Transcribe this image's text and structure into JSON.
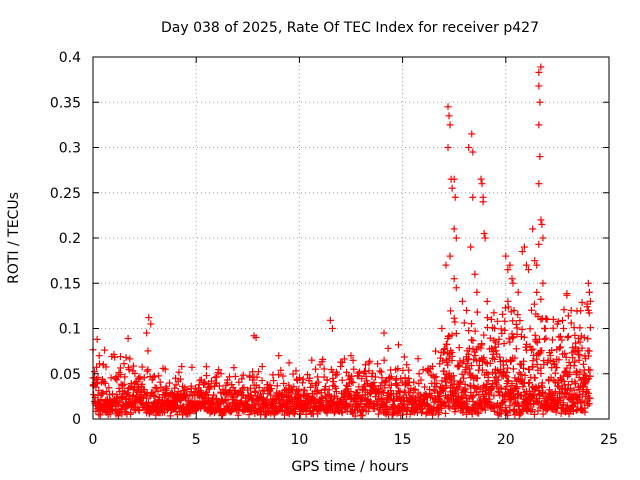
{
  "chart_data": {
    "type": "scatter",
    "title": "Day 038 of 2025, Rate Of TEC Index for receiver p427",
    "xlabel": "GPS time / hours",
    "ylabel": "ROTI / TECUs",
    "xlim": [
      0,
      25
    ],
    "ylim": [
      0,
      0.4
    ],
    "xticks": [
      0,
      5,
      10,
      15,
      20,
      25
    ],
    "yticks": [
      0,
      0.05,
      0.1,
      0.15,
      0.2,
      0.25,
      0.3,
      0.35,
      0.4
    ],
    "xtick_labels": [
      "0",
      "5",
      "10",
      "15",
      "20",
      "25"
    ],
    "ytick_labels": [
      "0",
      "0.05",
      "0.1",
      "0.15",
      "0.2",
      "0.25",
      "0.3",
      "0.35",
      "0.4"
    ],
    "grid": true,
    "marker": "+",
    "color": "#ff0000",
    "series": [
      {
        "name": "ROTI",
        "points": [
          [
            0.2,
            0.088
          ],
          [
            0.3,
            0.07
          ],
          [
            0.5,
            0.06
          ],
          [
            1.6,
            0.068
          ],
          [
            1.7,
            0.089
          ],
          [
            2.6,
            0.095
          ],
          [
            2.7,
            0.112
          ],
          [
            2.8,
            0.105
          ],
          [
            3.5,
            0.055
          ],
          [
            4.0,
            0.045
          ],
          [
            4.3,
            0.058
          ],
          [
            5.5,
            0.048
          ],
          [
            6.2,
            0.05
          ],
          [
            7.8,
            0.092
          ],
          [
            7.9,
            0.09
          ],
          [
            8.2,
            0.058
          ],
          [
            9.0,
            0.07
          ],
          [
            9.5,
            0.062
          ],
          [
            10.6,
            0.065
          ],
          [
            11.0,
            0.06
          ],
          [
            11.5,
            0.109
          ],
          [
            11.6,
            0.1
          ],
          [
            12.0,
            0.058
          ],
          [
            12.5,
            0.07
          ],
          [
            13.2,
            0.06
          ],
          [
            14.1,
            0.095
          ],
          [
            14.3,
            0.078
          ],
          [
            14.8,
            0.082
          ],
          [
            15.2,
            0.06
          ],
          [
            15.8,
            0.05
          ],
          [
            16.6,
            0.075
          ],
          [
            16.9,
            0.1
          ],
          [
            17.2,
            0.345
          ],
          [
            17.25,
            0.335
          ],
          [
            17.3,
            0.325
          ],
          [
            17.35,
            0.265
          ],
          [
            17.2,
            0.3
          ],
          [
            17.4,
            0.255
          ],
          [
            17.5,
            0.265
          ],
          [
            17.55,
            0.245
          ],
          [
            17.5,
            0.21
          ],
          [
            17.6,
            0.2
          ],
          [
            17.3,
            0.18
          ],
          [
            17.1,
            0.17
          ],
          [
            17.5,
            0.155
          ],
          [
            17.6,
            0.145
          ],
          [
            17.9,
            0.13
          ],
          [
            18.1,
            0.12
          ],
          [
            18.2,
            0.3
          ],
          [
            18.35,
            0.315
          ],
          [
            18.4,
            0.295
          ],
          [
            18.4,
            0.245
          ],
          [
            18.5,
            0.16
          ],
          [
            18.3,
            0.19
          ],
          [
            18.6,
            0.14
          ],
          [
            18.8,
            0.265
          ],
          [
            18.85,
            0.26
          ],
          [
            18.9,
            0.245
          ],
          [
            18.9,
            0.24
          ],
          [
            18.95,
            0.205
          ],
          [
            19.0,
            0.2
          ],
          [
            19.1,
            0.13
          ],
          [
            19.3,
            0.11
          ],
          [
            19.5,
            0.085
          ],
          [
            20.0,
            0.18
          ],
          [
            20.1,
            0.165
          ],
          [
            20.2,
            0.17
          ],
          [
            20.3,
            0.155
          ],
          [
            20.35,
            0.15
          ],
          [
            20.1,
            0.13
          ],
          [
            20.4,
            0.12
          ],
          [
            20.6,
            0.14
          ],
          [
            20.8,
            0.185
          ],
          [
            20.9,
            0.19
          ],
          [
            21.0,
            0.17
          ],
          [
            21.1,
            0.165
          ],
          [
            21.3,
            0.21
          ],
          [
            21.4,
            0.175
          ],
          [
            21.5,
            0.17
          ],
          [
            21.6,
            0.26
          ],
          [
            21.65,
            0.29
          ],
          [
            21.6,
            0.325
          ],
          [
            21.65,
            0.35
          ],
          [
            21.6,
            0.368
          ],
          [
            21.6,
            0.383
          ],
          [
            21.7,
            0.389
          ],
          [
            21.7,
            0.22
          ],
          [
            21.75,
            0.215
          ],
          [
            21.8,
            0.2
          ],
          [
            21.6,
            0.193
          ],
          [
            21.5,
            0.14
          ],
          [
            21.8,
            0.15
          ],
          [
            22.0,
            0.11
          ],
          [
            22.3,
            0.11
          ],
          [
            22.5,
            0.105
          ],
          [
            22.8,
            0.1
          ],
          [
            23.0,
            0.09
          ],
          [
            23.4,
            0.075
          ],
          [
            23.6,
            0.085
          ],
          [
            24.0,
            0.15
          ],
          [
            24.05,
            0.14
          ],
          [
            24.1,
            0.13
          ],
          [
            24.0,
            0.12
          ],
          [
            24.1,
            0.101
          ],
          [
            23.8,
            0.09
          ]
        ]
      }
    ]
  }
}
